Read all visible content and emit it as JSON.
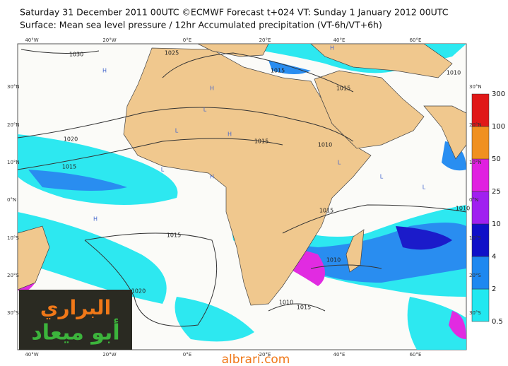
{
  "header": {
    "title": "Saturday 31 December 2011 00UTC ©ECMWF Forecast t+024 VT: Sunday 1 January 2012 00UTC",
    "subtitle": "Surface: Mean sea level pressure / 12hr Accumulated precipitation (VT-6h/VT+6h)"
  },
  "map": {
    "longitudes": [
      "40°W",
      "20°W",
      "0°E",
      "20°E",
      "40°E",
      "60°E"
    ],
    "latitudes": [
      "30°N",
      "20°N",
      "10°N",
      "0°N",
      "10°S",
      "20°S",
      "30°S"
    ],
    "isobar_labels": [
      "1030",
      "1025",
      "1020",
      "1015",
      "1015",
      "1015",
      "1015",
      "1010",
      "1010",
      "1015",
      "1015",
      "1010",
      "1020",
      "1010",
      "1015",
      "1010"
    ],
    "pressure_centers": [
      "H",
      "H",
      "L",
      "L",
      "H",
      "L",
      "H",
      "L",
      "H",
      "L",
      "H",
      "L"
    ]
  },
  "legend": {
    "levels": [
      0.5,
      2,
      4,
      10,
      25,
      50,
      100,
      300
    ],
    "colors": [
      "#22e8f0",
      "#1e88f0",
      "#1010c8",
      "#a020f0",
      "#e020e0",
      "#f09020",
      "#e01818"
    ]
  },
  "watermark": {
    "site": "albrari.com",
    "name_top": "البراري",
    "name_bottom": "أبو ميعاد"
  }
}
